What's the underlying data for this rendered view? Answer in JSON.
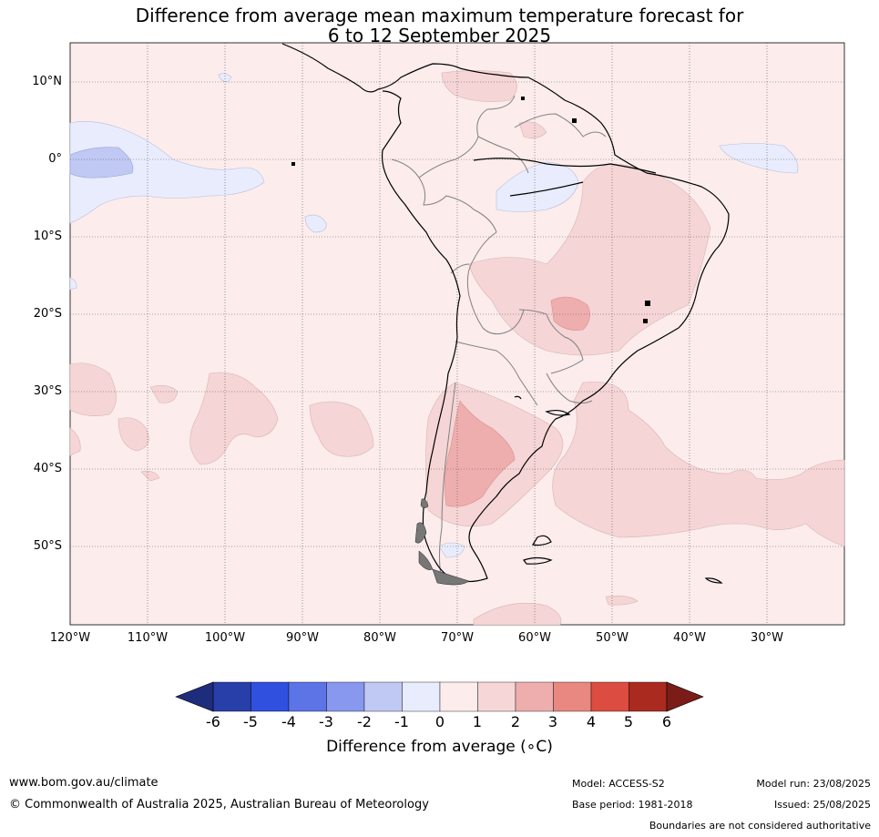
{
  "title_line1": "Difference from average mean maximum temperature forecast for",
  "title_line2": "6 to 12 September 2025",
  "lat_labels": [
    "10°N",
    "0°",
    "10°S",
    "20°S",
    "30°S",
    "40°S",
    "50°S"
  ],
  "lon_labels": [
    "120°W",
    "110°W",
    "100°W",
    "90°W",
    "80°W",
    "70°W",
    "60°W",
    "50°W",
    "40°W",
    "30°W"
  ],
  "colorbar": {
    "ticks": [
      "-6",
      "-5",
      "-4",
      "-3",
      "-2",
      "-1",
      "0",
      "1",
      "2",
      "3",
      "4",
      "5",
      "6"
    ],
    "colors": [
      "#283ea8",
      "#3050e0",
      "#5c74e6",
      "#8898ee",
      "#c0c8f4",
      "#e8ecfc",
      "#fcecec",
      "#f6d6d6",
      "#eeaeae",
      "#e88880",
      "#dc4c40",
      "#aa2a20"
    ],
    "under_color": "#1e2c7c",
    "over_color": "#7c1c18",
    "label": "Difference from average (∘C)"
  },
  "footer": {
    "website": "www.bom.gov.au/climate",
    "copyright": "© Commonwealth of Australia 2025, Australian Bureau of Meteorology",
    "model": "Model: ACCESS-S2",
    "base_period": "Base period: 1981-2018",
    "model_run": "Model run: 23/08/2025",
    "issued": "Issued: 25/08/2025",
    "disclaimer": "Boundaries are not considered authoritative"
  }
}
